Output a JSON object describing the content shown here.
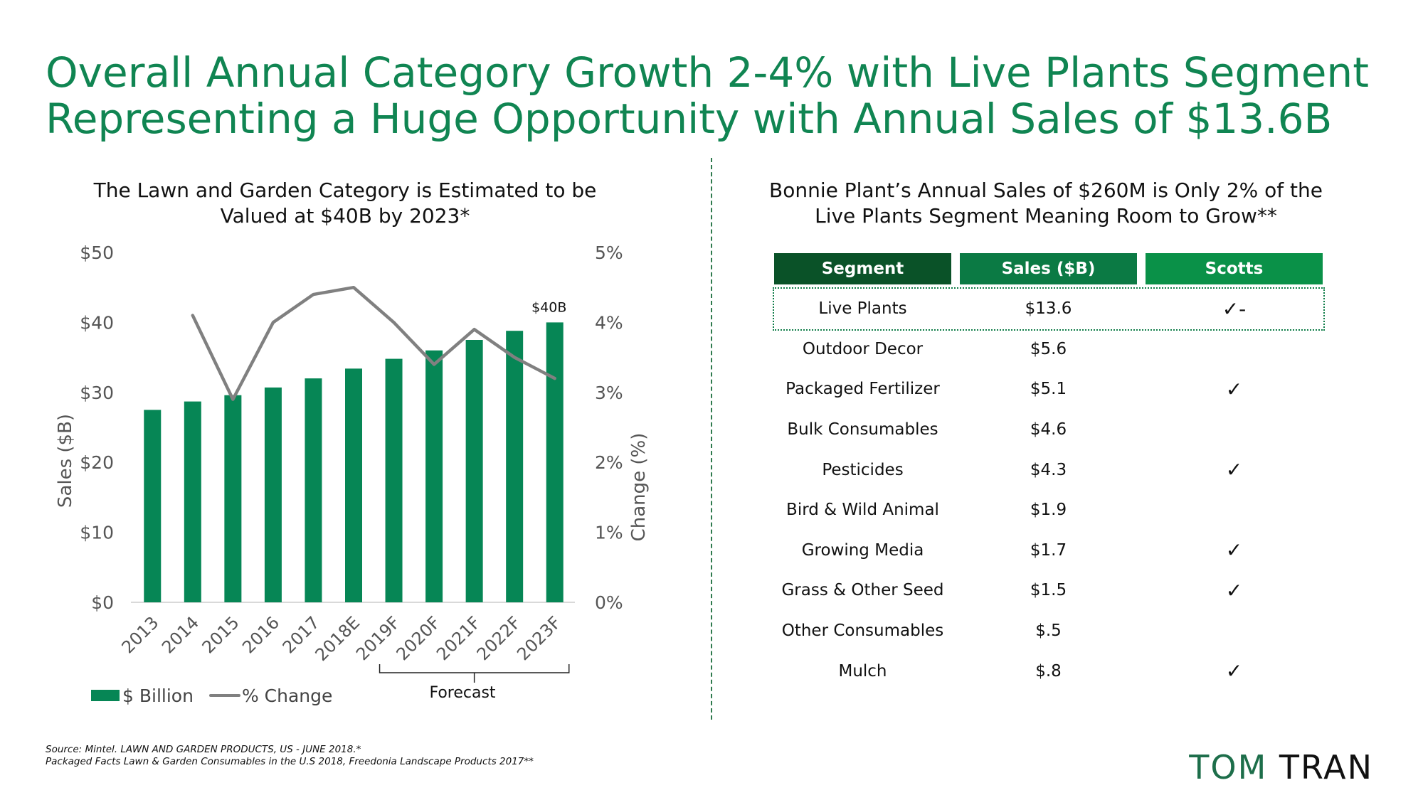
{
  "slide": {
    "title_lines": [
      "Overall Annual Category Growth 2-4% with Live Plants Segment",
      "Representing a Huge Opportunity with Annual Sales of $13.6B"
    ],
    "left_subtitle_lines": [
      "The Lawn and Garden Category is Estimated to be",
      "Valued at $40B by 2023*"
    ],
    "right_subtitle_lines": [
      "Bonnie Plant’s Annual Sales of $260M is Only 2% of the",
      "Live Plants Segment Meaning Room to Grow**"
    ],
    "source_lines": [
      "Source: Mintel. LAWN AND GARDEN PRODUCTS, US - JUNE 2018.*",
      "Packaged Facts Lawn & Garden Consumables in the U.S 2018, Freedonia Landscape Products 2017**"
    ],
    "brand": {
      "first": "TOM",
      "last": "TRAN"
    }
  },
  "colors": {
    "title": "#108552",
    "bar": "#068655",
    "line": "#808080",
    "header_segment": "#0a5228",
    "header_sales": "#0b7a44",
    "header_scotts": "#0a9148"
  },
  "chart_data": {
    "type": "bar",
    "categories": [
      "2013",
      "2014",
      "2015",
      "2016",
      "2017",
      "2018E",
      "2019F",
      "2020F",
      "2021F",
      "2022F",
      "2023F"
    ],
    "series": [
      {
        "name": "$ Billion",
        "type": "bar",
        "axis": "left",
        "values": [
          27.5,
          28.7,
          29.6,
          30.7,
          32.0,
          33.4,
          34.8,
          36.0,
          37.5,
          38.8,
          40.0
        ]
      },
      {
        "name": "% Change",
        "type": "line",
        "axis": "right",
        "values": [
          null,
          4.1,
          2.9,
          4.0,
          4.4,
          4.5,
          4.0,
          3.4,
          3.9,
          3.5,
          3.2
        ]
      }
    ],
    "ylabel": "Sales ($B)",
    "y2label": "Change (%)",
    "ylim": [
      0,
      50
    ],
    "y2lim": [
      0,
      5
    ],
    "yticks": [
      "$0",
      "$10",
      "$20",
      "$30",
      "$40",
      "$50"
    ],
    "y2ticks": [
      "0%",
      "1%",
      "2%",
      "3%",
      "4%",
      "5%"
    ],
    "annotations": [
      {
        "category": "2023F",
        "text": "$40B"
      }
    ],
    "forecast_label": "Forecast",
    "forecast_range": [
      "2019F",
      "2023F"
    ],
    "legend_position": "bottom-left",
    "grid": false
  },
  "table": {
    "headers": [
      "Segment",
      "Sales ($B)",
      "Scotts"
    ],
    "rows": [
      {
        "segment": "Live Plants",
        "sales": "$13.6",
        "scotts": "✓-",
        "highlight": true
      },
      {
        "segment": "Outdoor Decor",
        "sales": "$5.6",
        "scotts": ""
      },
      {
        "segment": "Packaged Fertilizer",
        "sales": "$5.1",
        "scotts": "✓"
      },
      {
        "segment": "Bulk Consumables",
        "sales": "$4.6",
        "scotts": ""
      },
      {
        "segment": "Pesticides",
        "sales": "$4.3",
        "scotts": "✓"
      },
      {
        "segment": "Bird & Wild Animal",
        "sales": "$1.9",
        "scotts": ""
      },
      {
        "segment": "Growing Media",
        "sales": "$1.7",
        "scotts": "✓"
      },
      {
        "segment": "Grass & Other Seed",
        "sales": "$1.5",
        "scotts": "✓"
      },
      {
        "segment": "Other Consumables",
        "sales": "$.5",
        "scotts": ""
      },
      {
        "segment": "Mulch",
        "sales": "$.8",
        "scotts": "✓"
      }
    ]
  }
}
